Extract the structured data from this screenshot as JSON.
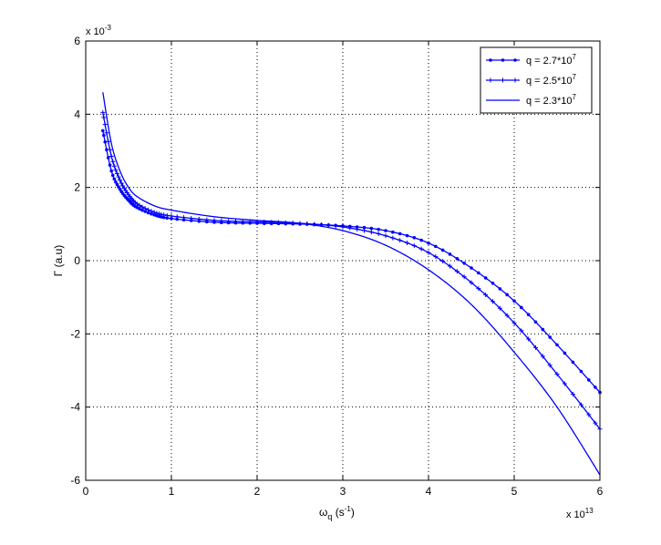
{
  "chart_data": {
    "type": "line",
    "title": "",
    "xlabel_main": "ω",
    "xlabel_sub": "q",
    "xlabel_paren_open": " (s",
    "xlabel_sup": "-1",
    "xlabel_paren_close": ")",
    "ylabel": "Γ (a.u)",
    "x_multiplier_base": "x 10",
    "x_multiplier_exp": "13",
    "y_multiplier_base": "x 10",
    "y_multiplier_exp": "-3",
    "xlim": [
      0,
      6
    ],
    "ylim": [
      -6,
      6
    ],
    "xticks": [
      0,
      1,
      2,
      3,
      4,
      5,
      6
    ],
    "yticks": [
      -6,
      -4,
      -2,
      0,
      2,
      4,
      6
    ],
    "xtick_labels": [
      "0",
      "1",
      "2",
      "3",
      "4",
      "5",
      "6"
    ],
    "ytick_labels": [
      "-6",
      "-4",
      "-2",
      "0",
      "2",
      "4",
      "6"
    ],
    "grid": true,
    "legend_position": "top-right",
    "series": [
      {
        "name": "q = 2.7*10",
        "name_sup": "7",
        "color": "#0000ff",
        "marker": "dot",
        "x": [
          0.2,
          0.3,
          0.4,
          0.5,
          0.6,
          0.8,
          1.0,
          1.5,
          2.0,
          2.5,
          3.0,
          3.5,
          4.0,
          4.5,
          5.0,
          5.5,
          6.0
        ],
        "y": [
          3.55,
          2.45,
          1.95,
          1.65,
          1.45,
          1.25,
          1.15,
          1.05,
          1.02,
          1.0,
          0.95,
          0.82,
          0.48,
          -0.2,
          -1.1,
          -2.3,
          -3.6
        ]
      },
      {
        "name": "q = 2.5*10",
        "name_sup": "7",
        "color": "#0000ff",
        "marker": "plus",
        "x": [
          0.2,
          0.3,
          0.4,
          0.5,
          0.6,
          0.8,
          1.0,
          1.5,
          2.0,
          2.5,
          3.0,
          3.5,
          4.0,
          4.5,
          5.0,
          5.5,
          6.0
        ],
        "y": [
          4.05,
          2.85,
          2.2,
          1.8,
          1.55,
          1.32,
          1.22,
          1.1,
          1.06,
          1.02,
          0.92,
          0.68,
          0.22,
          -0.6,
          -1.7,
          -3.1,
          -4.6
        ]
      },
      {
        "name": "q = 2.3*10",
        "name_sup": "7",
        "color": "#0000ff",
        "marker": "none",
        "x": [
          0.2,
          0.3,
          0.4,
          0.5,
          0.6,
          0.8,
          1.0,
          1.5,
          2.0,
          2.5,
          3.0,
          3.5,
          4.0,
          4.5,
          5.0,
          5.5,
          6.0
        ],
        "y": [
          4.6,
          3.2,
          2.45,
          2.0,
          1.75,
          1.5,
          1.38,
          1.2,
          1.1,
          1.02,
          0.82,
          0.42,
          -0.25,
          -1.2,
          -2.5,
          -4.0,
          -5.85
        ]
      }
    ]
  }
}
